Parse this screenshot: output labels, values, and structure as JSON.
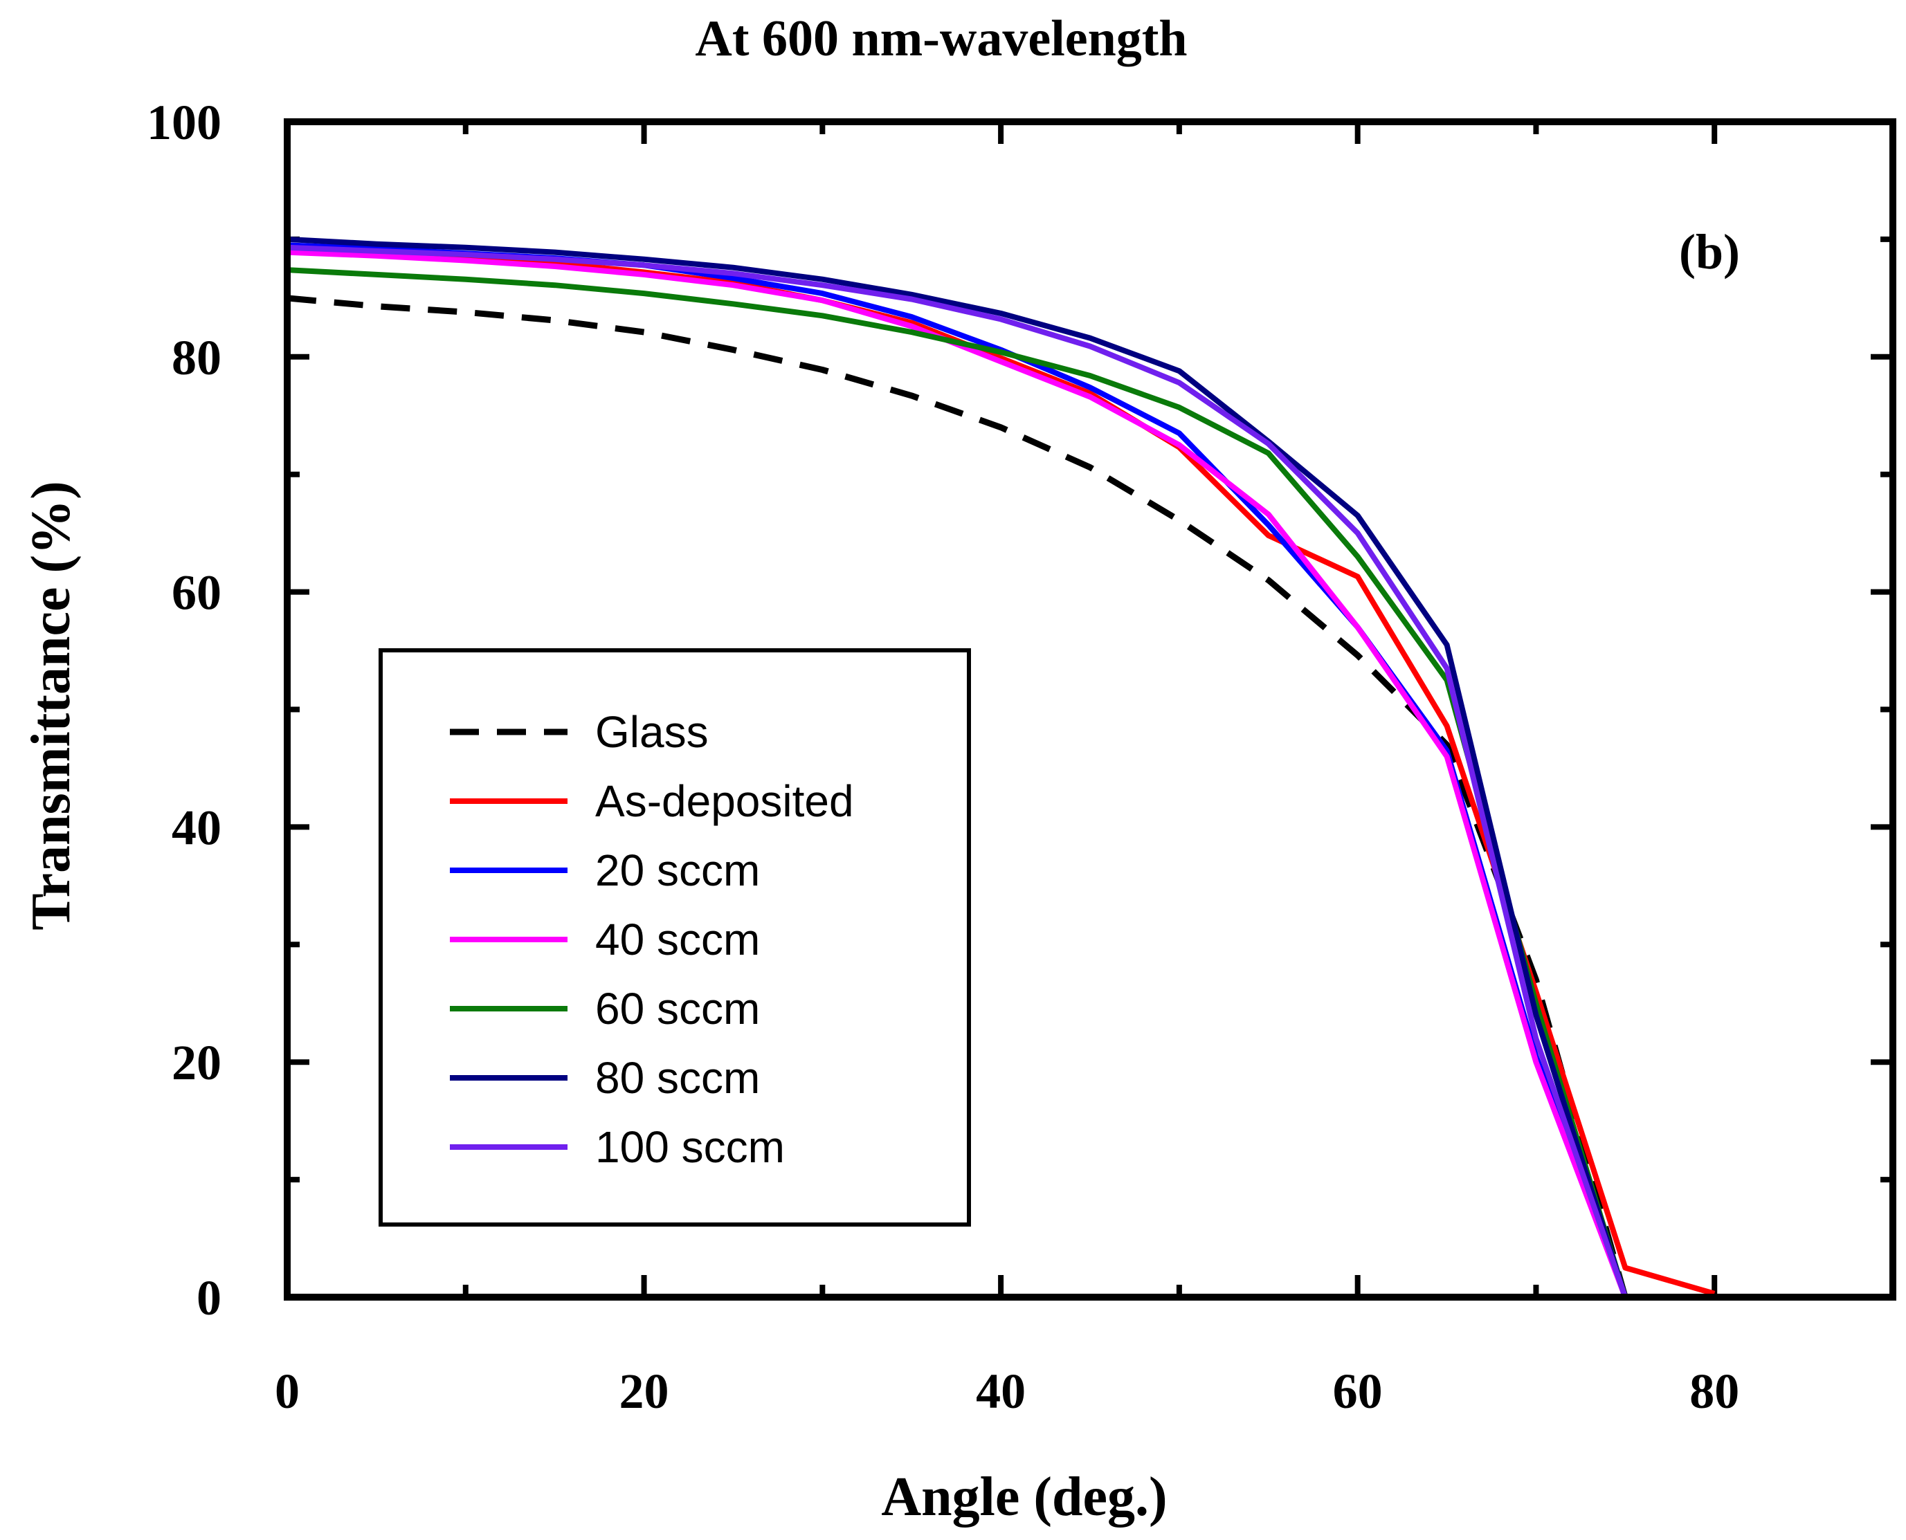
{
  "chart_data": {
    "type": "line",
    "title": "At 600 nm-wavelength",
    "xlabel": "Angle (deg.)",
    "ylabel": "Transmittance (%)",
    "panel_label": "(b)",
    "xlim": [
      0,
      90
    ],
    "ylim": [
      0,
      100
    ],
    "xticks": [
      0,
      20,
      40,
      60,
      80
    ],
    "yticks": [
      0,
      20,
      40,
      60,
      80,
      100
    ],
    "xtick_labels": [
      "0",
      "20",
      "40",
      "60",
      "80"
    ],
    "ytick_labels": [
      "0",
      "20",
      "40",
      "60",
      "80",
      "100"
    ],
    "grid": false,
    "legend_position": "lower-left",
    "x": [
      0,
      5,
      10,
      15,
      20,
      25,
      30,
      35,
      40,
      45,
      50,
      55,
      60,
      65,
      70,
      75,
      80
    ],
    "series": [
      {
        "name": "Glass",
        "color": "#000000",
        "dash": true,
        "values": [
          85,
          84.3,
          83.8,
          83.1,
          82.1,
          80.6,
          78.9,
          76.7,
          74.0,
          70.6,
          66.1,
          61.0,
          54.6,
          47.0,
          27.0,
          0,
          0
        ]
      },
      {
        "name": "As-deposited",
        "color": "#ff0000",
        "dash": false,
        "values": [
          89.2,
          88.8,
          88.4,
          88.0,
          87.2,
          86.3,
          84.8,
          82.9,
          79.9,
          76.9,
          72.3,
          64.8,
          61.3,
          48.6,
          26.0,
          2.5,
          0.3
        ]
      },
      {
        "name": "20 sccm",
        "color": "#0000ff",
        "dash": false,
        "values": [
          89.5,
          89.2,
          88.8,
          88.4,
          87.8,
          86.7,
          85.4,
          83.4,
          80.6,
          77.4,
          73.5,
          65.7,
          57.0,
          46.5,
          20.5,
          0,
          0
        ]
      },
      {
        "name": "40 sccm",
        "color": "#ff00ff",
        "dash": false,
        "values": [
          88.9,
          88.6,
          88.2,
          87.7,
          87.0,
          86.1,
          84.8,
          82.6,
          79.6,
          76.6,
          72.5,
          66.6,
          57.0,
          46.0,
          20.0,
          0,
          0
        ]
      },
      {
        "name": "60 sccm",
        "color": "#0a7a0a",
        "dash": false,
        "values": [
          87.4,
          87.0,
          86.6,
          86.1,
          85.4,
          84.5,
          83.5,
          82.1,
          80.4,
          78.4,
          75.7,
          71.8,
          63.0,
          52.5,
          25.0,
          0,
          0
        ]
      },
      {
        "name": "80 sccm",
        "color": "#000080",
        "dash": false,
        "values": [
          90.0,
          89.6,
          89.3,
          88.9,
          88.3,
          87.6,
          86.6,
          85.3,
          83.7,
          81.6,
          78.8,
          72.8,
          66.5,
          55.5,
          24.0,
          0,
          0
        ]
      },
      {
        "name": "100 sccm",
        "color": "#7020ee",
        "dash": false,
        "values": [
          89.3,
          89.0,
          88.7,
          88.3,
          87.8,
          87.1,
          86.1,
          84.9,
          83.2,
          80.9,
          77.8,
          72.6,
          65.0,
          53.5,
          22.0,
          0,
          0
        ]
      }
    ]
  }
}
